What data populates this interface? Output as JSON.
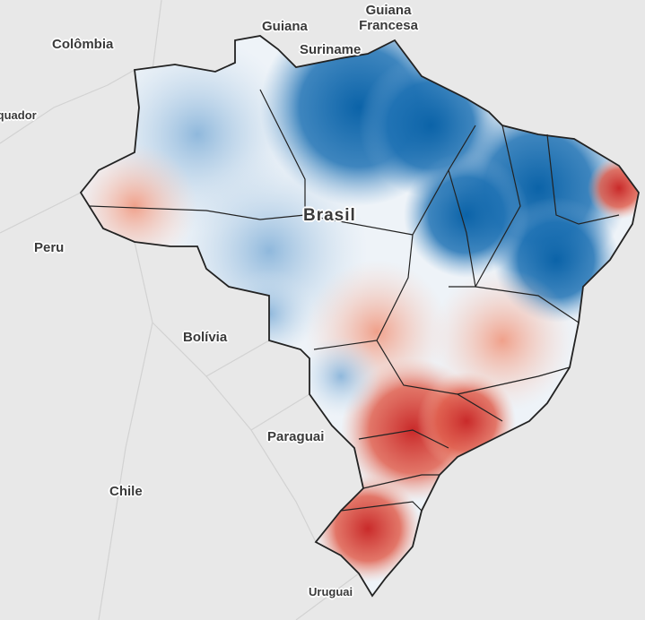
{
  "labels": {
    "colombia": "Colômbia",
    "guiana": "Guiana",
    "guiana_francesa": "Guiana Francesa",
    "suriname": "Suriname",
    "equador": "Equador",
    "peru": "Peru",
    "brasil": "Brasil",
    "bolivia": "Bolívia",
    "paraguai": "Paraguai",
    "chile": "Chile",
    "uruguai": "Uruguai"
  }
}
